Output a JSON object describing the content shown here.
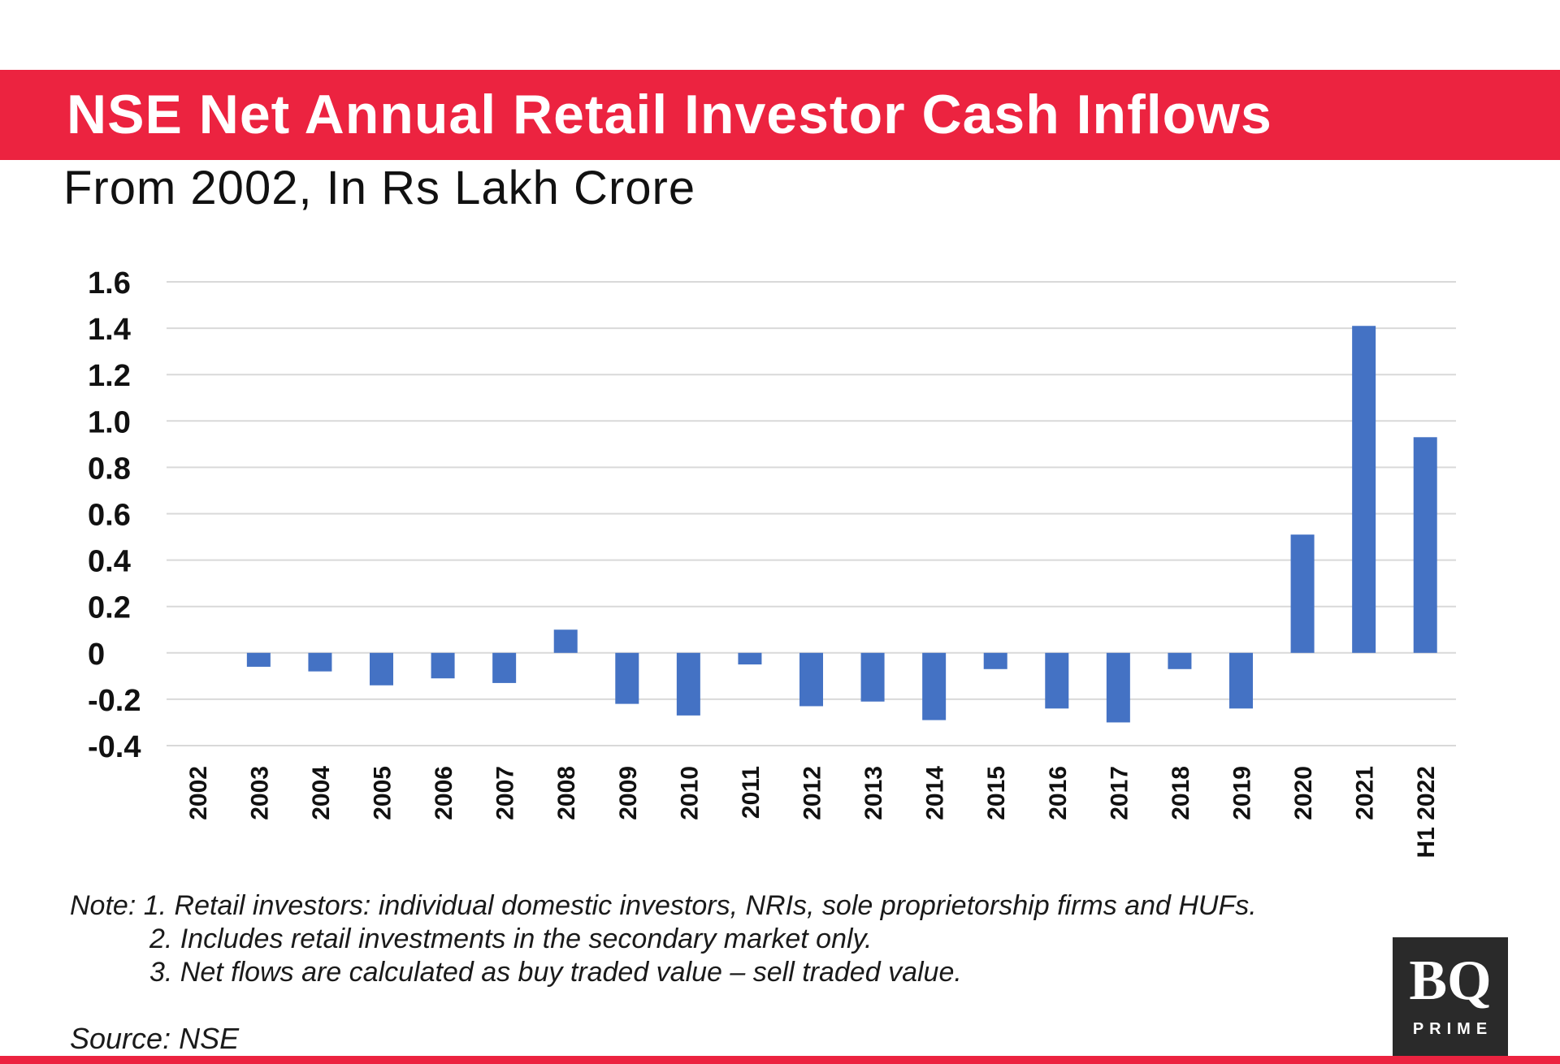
{
  "header": {
    "title": "NSE Net Annual Retail Investor Cash Inflows",
    "subtitle": "From 2002, In Rs Lakh Crore"
  },
  "notes": {
    "line1": "Note: 1. Retail investors: individual domestic investors, NRIs, sole proprietorship firms and HUFs.",
    "line2": "2. Includes retail investments in the secondary market only.",
    "line3": "3. Net flows are calculated as buy traded value – sell traded value."
  },
  "source": "Source: NSE",
  "logo": {
    "main": "BQ",
    "sub": "PRIME"
  },
  "colors": {
    "accent": "#ec2340",
    "bar": "#4472c4",
    "grid": "#d9d9d9"
  },
  "chart_data": {
    "type": "bar",
    "title": "NSE Net Annual Retail Investor Cash Inflows",
    "subtitle": "From 2002, In Rs Lakh Crore",
    "xlabel": "",
    "ylabel": "",
    "ylim": [
      -0.4,
      1.6
    ],
    "yticks": [
      1.6,
      1.4,
      1.2,
      1.0,
      0.8,
      0.6,
      0.4,
      0.2,
      0,
      -0.2,
      -0.4
    ],
    "ytick_labels": [
      "1.6",
      "1.4",
      "1.2",
      "1.0",
      "0.8",
      "0.6",
      "0.4",
      "0.2",
      "0",
      "-0.2",
      "-0.4"
    ],
    "grid": true,
    "categories": [
      "2002",
      "2003",
      "2004",
      "2005",
      "2006",
      "2007",
      "2008",
      "2009",
      "2010",
      "2011",
      "2012",
      "2013",
      "2014",
      "2015",
      "2016",
      "2017",
      "2018",
      "2019",
      "2020",
      "2021",
      "H1 2022"
    ],
    "values": [
      0.0,
      -0.06,
      -0.08,
      -0.14,
      -0.11,
      -0.13,
      0.1,
      -0.22,
      -0.27,
      -0.05,
      -0.23,
      -0.21,
      -0.29,
      -0.07,
      -0.24,
      -0.3,
      -0.07,
      -0.24,
      0.51,
      1.41,
      0.93
    ]
  }
}
